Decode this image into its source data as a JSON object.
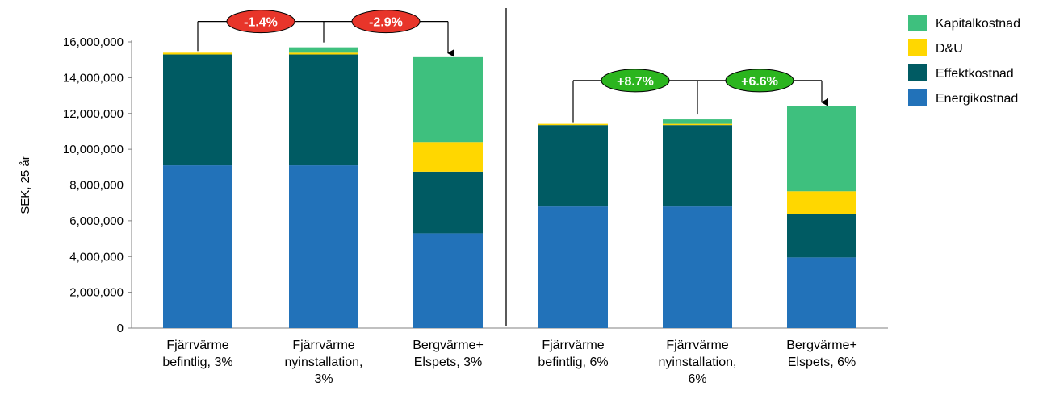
{
  "chart_data": {
    "type": "bar",
    "stacked": true,
    "ylabel": "SEK, 25 år",
    "ylim": [
      0,
      16000000
    ],
    "yticks": [
      0,
      2000000,
      4000000,
      6000000,
      8000000,
      10000000,
      12000000,
      14000000,
      16000000
    ],
    "ytick_labels": [
      "0",
      "2,000,000",
      "4,000,000",
      "6,000,000",
      "8,000,000",
      "10,000,000",
      "12,000,000",
      "14,000,000",
      "16,000,000"
    ],
    "grid": false,
    "legend_position": "top-right",
    "categories": [
      [
        "Fjärrvärme",
        "befintlig, 3%"
      ],
      [
        "Fjärrvärme",
        "nyinstallation,",
        "3%"
      ],
      [
        "Bergvärme+",
        "Elspets, 3%"
      ],
      [
        "Fjärrvärme",
        "befintlig, 6%"
      ],
      [
        "Fjärrvärme",
        "nyinstallation,",
        "6%"
      ],
      [
        "Bergvärme+",
        "Elspets, 6%"
      ]
    ],
    "series": [
      {
        "name": "Energikostnad",
        "color": "#2272B9",
        "values": [
          9100000,
          9100000,
          5300000,
          6800000,
          6800000,
          3950000
        ]
      },
      {
        "name": "Effektkostnad",
        "color": "#005B63",
        "values": [
          6200000,
          6200000,
          3450000,
          4550000,
          4550000,
          2450000
        ]
      },
      {
        "name": "D&U",
        "color": "#FFD700",
        "values": [
          100000,
          100000,
          1650000,
          70000,
          70000,
          1250000
        ]
      },
      {
        "name": "Kapitalkostnad",
        "color": "#3EC07E",
        "values": [
          0,
          300000,
          4750000,
          0,
          250000,
          4750000
        ]
      }
    ],
    "legend_order": [
      "Kapitalkostnad",
      "D&U",
      "Effektkostnad",
      "Energikostnad"
    ],
    "annotations": [
      {
        "label": "-1.4%",
        "from": 0,
        "to": 1,
        "color": "#E8352A"
      },
      {
        "label": "-2.9%",
        "from": 1,
        "to": 2,
        "color": "#E8352A"
      },
      {
        "label": "+8.7%",
        "from": 3,
        "to": 4,
        "color": "#2BB51E"
      },
      {
        "label": "+6.6%",
        "from": 4,
        "to": 5,
        "color": "#2BB51E"
      }
    ]
  }
}
